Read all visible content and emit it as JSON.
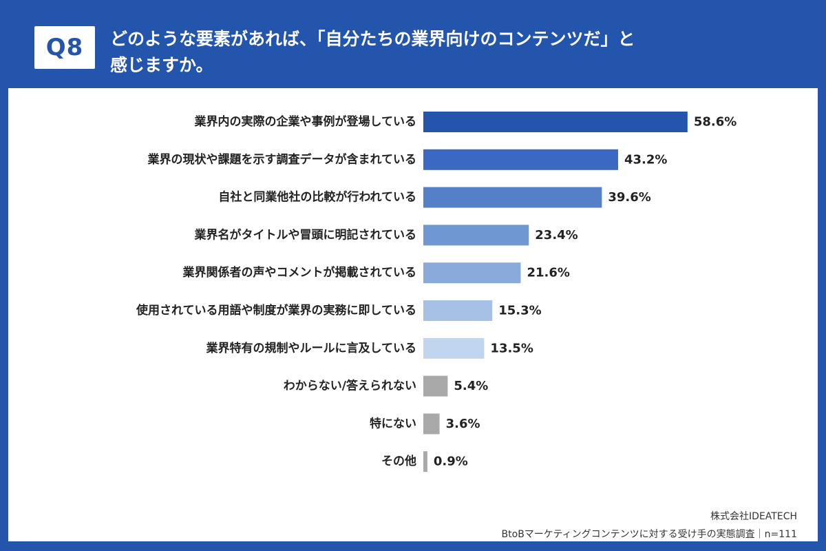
{
  "header": {
    "badge": "Q8",
    "question_line1": "どのような要素があれば、「自分たちの業界向けのコンテンツだ」と",
    "question_line2": "感じますか。"
  },
  "footer": {
    "company": "株式会社IDEATECH",
    "survey": "BtoBマーケティングコンテンツに対する受け手の実態調査｜n=111"
  },
  "colors": {
    "background": "#2455ad",
    "bar_shades": [
      "#2455ad",
      "#3a68c2",
      "#5580c8",
      "#6f97d1",
      "#8aaadb",
      "#a6c0e6",
      "#c2d5ef",
      "#a9a9a9",
      "#a9a9a9",
      "#a9a9a9"
    ]
  },
  "chart_data": {
    "type": "bar",
    "orientation": "horizontal",
    "categories": [
      "業界内の実際の企業や事例が登場している",
      "業界の現状や課題を示す調査データが含まれている",
      "自社と同業他社の比較が行われている",
      "業界名がタイトルや冒頭に明記されている",
      "業界関係者の声やコメントが掲載されている",
      "使用されている用語や制度が業界の実務に即している",
      "業界特有の規制やルールに言及している",
      "わからない/答えられない",
      "特にない",
      "その他"
    ],
    "values": [
      58.6,
      43.2,
      39.6,
      23.4,
      21.6,
      15.3,
      13.5,
      5.4,
      3.6,
      0.9
    ],
    "value_labels": [
      "58.6%",
      "43.2%",
      "39.6%",
      "23.4%",
      "21.6%",
      "15.3%",
      "13.5%",
      "5.4%",
      "3.6%",
      "0.9%"
    ],
    "unit": "%",
    "xlim": [
      0,
      100
    ],
    "grid": false,
    "legend": "none"
  }
}
